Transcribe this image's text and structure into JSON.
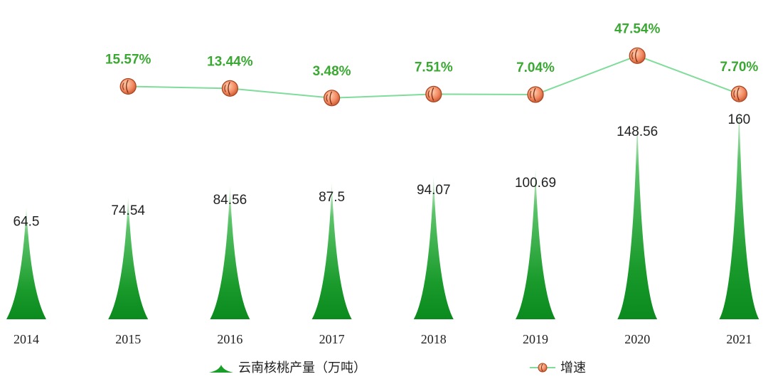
{
  "chart_data": {
    "type": "bar",
    "categories": [
      "2014",
      "2015",
      "2016",
      "2017",
      "2018",
      "2019",
      "2020",
      "2021"
    ],
    "series": [
      {
        "name": "云南核桃产量（万吨）",
        "kind": "spike-bar",
        "color": "#1a9e2a",
        "values": [
          64.5,
          74.54,
          84.56,
          87.5,
          94.07,
          100.69,
          148.56,
          160
        ],
        "labels": [
          "64.5",
          "74.54",
          "84.56",
          "87.5",
          "94.07",
          "100.69",
          "148.56",
          "160"
        ]
      },
      {
        "name": "增速",
        "kind": "line",
        "color": "#7fdc9a",
        "marker": "walnut-icon",
        "values": [
          null,
          15.57,
          13.44,
          3.48,
          7.51,
          7.04,
          47.54,
          7.7
        ],
        "labels": [
          "",
          "15.57%",
          "13.44%",
          "3.48%",
          "7.51%",
          "7.04%",
          "47.54%",
          "7.70%"
        ]
      }
    ],
    "legend": {
      "placement": "bottom"
    },
    "grid": false
  }
}
